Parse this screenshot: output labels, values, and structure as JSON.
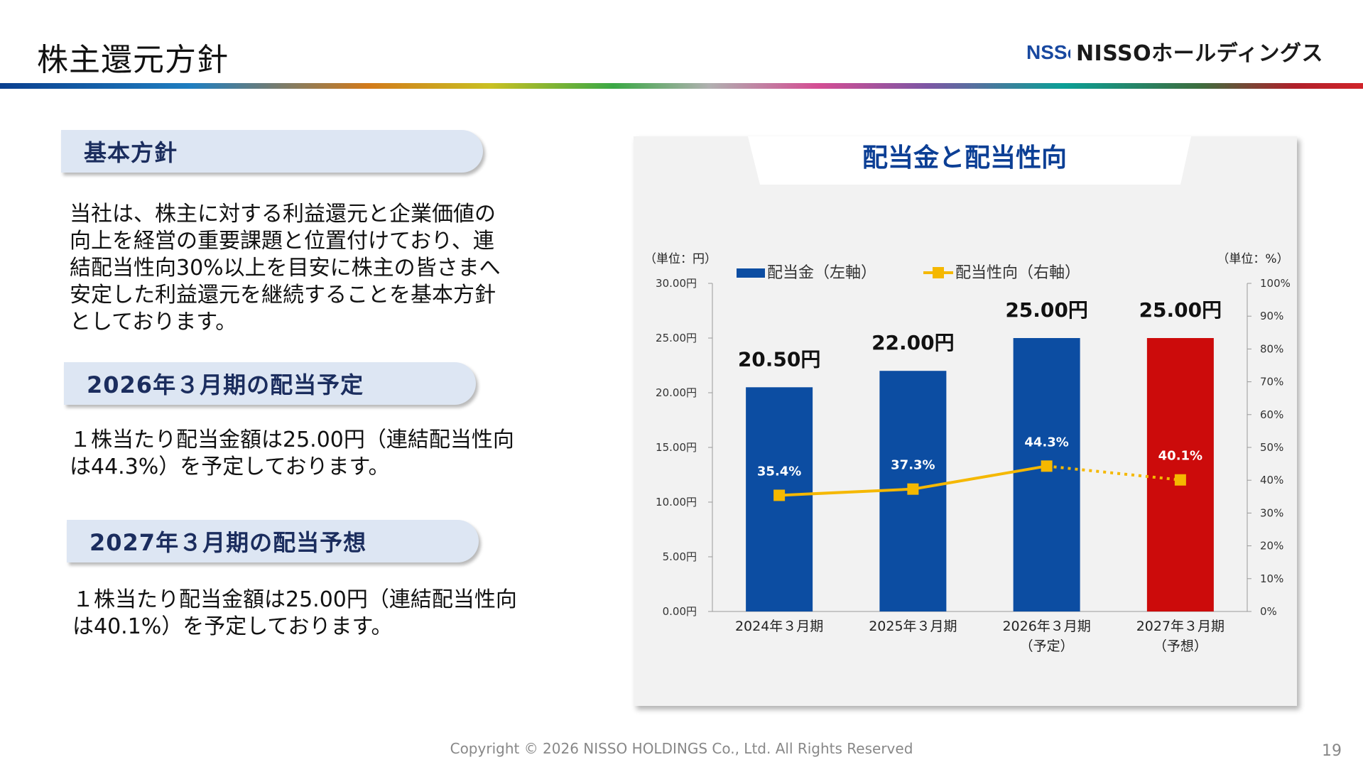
{
  "header": {
    "title": "株主還元方針",
    "logo_text": "NISSOホールディングス",
    "logo_mark": "NSSo"
  },
  "sections": [
    {
      "heading": "基本方針",
      "text": "当社は、株主に対する利益還元と企業価値の\n向上を経営の重要課題と位置付けており、連\n結配当性向30%以上を目安に株主の皆さまへ\n安定した利益還元を継続することを基本方針\nとしております。"
    },
    {
      "heading": "2026年３月期の配当予定",
      "text": "１株当たり配当金額は25.00円（連結配当性向\nは44.3%）を予定しております。"
    },
    {
      "heading": "2027年３月期の配当予想",
      "text": "１株当たり配当金額は25.00円（連結配当性向\nは40.1%）を予定しております。"
    }
  ],
  "chart_data": {
    "type": "bar",
    "title": "配当金と配当性向",
    "left_unit": "（単位：円）",
    "right_unit": "（単位：%）",
    "categories": [
      [
        "2024年３月期"
      ],
      [
        "2025年３月期"
      ],
      [
        "2026年３月期",
        "（予定）"
      ],
      [
        "2027年３月期",
        "（予想）"
      ]
    ],
    "series": [
      {
        "name": "配当金（左軸）",
        "axis": "left",
        "values": [
          20.5,
          22.0,
          25.0,
          25.0
        ],
        "labels": [
          "20.50円",
          "22.00円",
          "25.00円",
          "25.00円"
        ],
        "colors": [
          "#0c4da2",
          "#0c4da2",
          "#0c4da2",
          "#cc0b0b"
        ]
      },
      {
        "name": "配当性向（右軸）",
        "axis": "right",
        "type": "line",
        "values": [
          35.4,
          37.3,
          44.3,
          40.1
        ],
        "labels": [
          "35.4%",
          "37.3%",
          "44.3%",
          "40.1%"
        ],
        "color": "#f5b800",
        "last_segment_dotted": true
      }
    ],
    "left_axis": {
      "ylim": [
        0,
        30
      ],
      "ticks": [
        "0.00円",
        "5.00円",
        "10.00円",
        "15.00円",
        "20.00円",
        "25.00円",
        "30.00円"
      ]
    },
    "right_axis": {
      "ylim": [
        0,
        100
      ],
      "ticks": [
        "0%",
        "10%",
        "20%",
        "30%",
        "40%",
        "50%",
        "60%",
        "70%",
        "80%",
        "90%",
        "100%"
      ]
    },
    "grid": false,
    "legend": "top"
  },
  "footer": {
    "copyright": "Copyright © 2026 NISSO HOLDINGS Co., Ltd. All Rights Reserved",
    "page_number": "19"
  }
}
